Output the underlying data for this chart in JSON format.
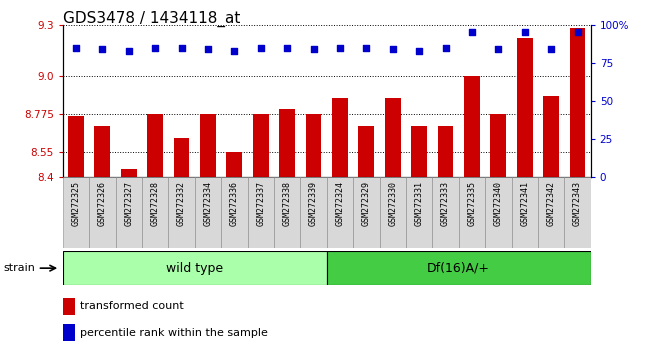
{
  "title": "GDS3478 / 1434118_at",
  "samples": [
    "GSM272325",
    "GSM272326",
    "GSM272327",
    "GSM272328",
    "GSM272332",
    "GSM272334",
    "GSM272336",
    "GSM272337",
    "GSM272338",
    "GSM272339",
    "GSM272324",
    "GSM272329",
    "GSM272330",
    "GSM272331",
    "GSM272333",
    "GSM272335",
    "GSM272340",
    "GSM272341",
    "GSM272342",
    "GSM272343"
  ],
  "bar_values": [
    8.76,
    8.7,
    8.45,
    8.775,
    8.63,
    8.775,
    8.55,
    8.775,
    8.8,
    8.775,
    8.87,
    8.7,
    8.87,
    8.7,
    8.7,
    9.0,
    8.775,
    9.22,
    8.88,
    9.28
  ],
  "percentile_values": [
    85,
    84,
    83,
    85,
    85,
    84,
    83,
    85,
    85,
    84,
    85,
    85,
    84,
    83,
    85,
    95,
    84,
    95,
    84,
    95
  ],
  "wild_type_count": 10,
  "df16_count": 10,
  "group1_label": "wild type",
  "group2_label": "Df(16)A/+",
  "ylim_left": [
    8.4,
    9.3
  ],
  "ylim_right": [
    0,
    100
  ],
  "left_ticks": [
    8.4,
    8.55,
    8.775,
    9.0,
    9.3
  ],
  "right_ticks": [
    0,
    25,
    50,
    75,
    100
  ],
  "bar_color": "#CC0000",
  "dot_color": "#0000CC",
  "strain_label": "strain",
  "legend_bar_label": "transformed count",
  "legend_dot_label": "percentile rank within the sample",
  "title_fontsize": 11,
  "tick_fontsize": 7.5,
  "xtick_fontsize": 6.0,
  "wt_color": "#aaffaa",
  "df_color": "#44cc44"
}
